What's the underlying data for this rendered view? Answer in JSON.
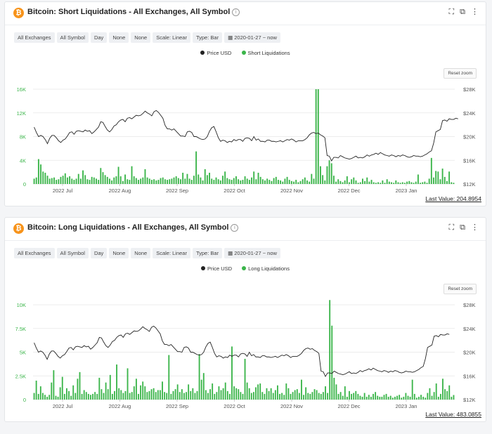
{
  "panels": [
    {
      "title": "Bitcoin: Short Liquidations - All Exchanges, All Symbol",
      "chips": [
        "All Exchanges",
        "All Symbol",
        "Day",
        "None",
        "None",
        "Scale: Linear",
        "Type: Bar",
        "2020-01-27 ~ now"
      ],
      "legend": [
        "Price USD",
        "Short Liquidations"
      ],
      "reset_zoom": "Reset zoom",
      "last_value": "Last Value: 204.8954"
    },
    {
      "title": "Bitcoin: Long Liquidations - All Exchanges, All Symbol",
      "chips": [
        "All Exchanges",
        "All Symbol",
        "Day",
        "None",
        "None",
        "Scale: Linear",
        "Type: Bar",
        "2020-01-27 ~ now"
      ],
      "legend": [
        "Price USD",
        "Long Liquidations"
      ],
      "reset_zoom": "Reset zoom",
      "last_value": "Last Value: 483.0855"
    }
  ],
  "colors": {
    "bar": "#3bb54a",
    "price": "#222222",
    "left_axis": "#3bb54a",
    "grid": "#e6e6e6"
  },
  "chart_data": [
    {
      "type": "bar",
      "title": "Bitcoin: Short Liquidations - All Exchanges, All Symbol",
      "x_labels": [
        "2022 Jul",
        "2022 Aug",
        "2022 Sep",
        "2022 Oct",
        "2022 Nov",
        "2022 Dec",
        "2023 Jan"
      ],
      "y_left_ticks": [
        "0",
        "4K",
        "8K",
        "12K",
        "16K"
      ],
      "y_left_max": 16000,
      "y_right_ticks": [
        "$12K",
        "$16K",
        "$20K",
        "$24K",
        "$28K"
      ],
      "y_right_range": [
        12000,
        28000
      ],
      "series": [
        {
          "name": "Short Liquidations",
          "values": [
            900,
            1100,
            4200,
            3300,
            2100,
            1900,
            1400,
            900,
            1000,
            1100,
            700,
            800,
            1200,
            1400,
            1800,
            1100,
            1300,
            900,
            700,
            900,
            1700,
            900,
            2300,
            1500,
            800,
            700,
            1200,
            1100,
            900,
            700,
            2700,
            2000,
            1500,
            1200,
            900,
            600,
            1100,
            1300,
            2900,
            1300,
            500,
            1600,
            800,
            700,
            3000,
            1300,
            1000,
            700,
            900,
            1100,
            2500,
            1100,
            900,
            700,
            800,
            600,
            700,
            1000,
            1100,
            800,
            700,
            800,
            900,
            1100,
            1300,
            1000,
            800,
            1900,
            900,
            1700,
            900,
            700,
            1400,
            5500,
            1600,
            1100,
            600,
            2500,
            1500,
            1900,
            900,
            700,
            1100,
            800,
            600,
            1400,
            2100,
            1000,
            800,
            700,
            1000,
            1300,
            800,
            600,
            700,
            1300,
            900,
            700,
            1100,
            2100,
            800,
            1900,
            1200,
            800,
            600,
            900,
            700,
            500,
            1000,
            1200,
            700,
            600,
            400,
            900,
            1200,
            700,
            500,
            400,
            700,
            300,
            500,
            800,
            1100,
            600,
            400,
            1700,
            900,
            16000,
            16000,
            3000,
            1500,
            600,
            3000,
            4000,
            3500,
            1400,
            400,
            800,
            500,
            300,
            600,
            1300,
            300,
            800,
            1100,
            600,
            200,
            300,
            900,
            500,
            1100,
            400,
            700,
            300,
            200,
            300,
            200,
            600,
            200,
            800,
            400,
            300,
            200,
            600,
            300,
            200,
            300,
            200,
            400,
            500,
            300,
            200,
            400,
            1600,
            200,
            300,
            400,
            200,
            900,
            4400,
            1100,
            2200,
            2100,
            800,
            2600,
            1200,
            500,
            2100,
            300,
            205
          ]
        },
        {
          "name": "Price USD",
          "values": [
            21600,
            20700,
            20000,
            20200,
            20000,
            19500,
            18800,
            19700,
            20200,
            20200,
            19800,
            19300,
            19000,
            19400,
            19600,
            20100,
            20700,
            20800,
            20400,
            20900,
            21000,
            20900,
            20800,
            21100,
            20900,
            21000,
            20500,
            20800,
            21200,
            21600,
            22500,
            22400,
            21700,
            21100,
            20800,
            21200,
            21800,
            22000,
            22500,
            22800,
            22900,
            22500,
            23100,
            23200,
            23000,
            23300,
            23600,
            23500,
            23600,
            23900,
            24300,
            24000,
            23800,
            23500,
            24200,
            24400,
            24100,
            23600,
            23100,
            21900,
            21300,
            21300,
            21100,
            21300,
            20900,
            20500,
            20100,
            20100,
            20000,
            20800,
            20900,
            20700,
            20000,
            20000,
            19800,
            19600,
            19500,
            19600,
            20000,
            20900,
            21500,
            21700,
            20800,
            19800,
            19200,
            19400,
            19300,
            19000,
            19200,
            19100,
            19500,
            19300,
            19500,
            19500,
            19200,
            19700,
            19800,
            19700,
            19300,
            20000,
            19400,
            19600,
            19200,
            19200,
            19100,
            19400,
            19400,
            19200,
            19200,
            19100,
            19200,
            19300,
            19100,
            19300,
            19500,
            19400,
            19600,
            19400,
            19100,
            19300,
            19300,
            19300,
            19500,
            19800,
            20300,
            20600,
            20700,
            20500,
            20600,
            20300,
            20100,
            19800,
            16800,
            16700,
            15900,
            16500,
            16500,
            16400,
            16800,
            16600,
            16400,
            16300,
            16200,
            16300,
            16500,
            16700,
            16400,
            16500,
            16400,
            16600,
            16900,
            16700,
            16900,
            17000,
            17200,
            17000,
            17300,
            17100,
            16900,
            16800,
            16700,
            16900,
            16800,
            16600,
            16800,
            16700,
            16900,
            16800,
            16600,
            16500,
            16600,
            16800,
            16700,
            16700,
            16600,
            16700,
            16900,
            17100,
            17400,
            17600,
            18900,
            20800,
            21000,
            21200,
            22700,
            22800,
            22600,
            23000,
            22900,
            22900,
            23100,
            23000
          ]
        }
      ]
    },
    {
      "type": "bar",
      "title": "Bitcoin: Long Liquidations - All Exchanges, All Symbol",
      "x_labels": [
        "2022 Jul",
        "2022 Aug",
        "2022 Sep",
        "2022 Oct",
        "2022 Nov",
        "2022 Dec",
        "2023 Jan"
      ],
      "y_left_ticks": [
        "0",
        "2.5K",
        "5K",
        "7.5K",
        "10K"
      ],
      "y_left_max": 10000,
      "y_right_ticks": [
        "$12K",
        "$16K",
        "$20K",
        "$24K",
        "$28K"
      ],
      "y_right_range": [
        12000,
        28000
      ],
      "series": [
        {
          "name": "Long Liquidations",
          "values": [
            700,
            2000,
            600,
            1400,
            700,
            500,
            300,
            500,
            1800,
            3100,
            400,
            300,
            1300,
            2400,
            600,
            1200,
            900,
            400,
            1500,
            700,
            2200,
            2900,
            600,
            1000,
            800,
            600,
            500,
            600,
            800,
            600,
            2300,
            1100,
            700,
            1800,
            1100,
            2600,
            600,
            900,
            3700,
            1200,
            1000,
            700,
            900,
            3300,
            700,
            800,
            1400,
            2200,
            600,
            1500,
            1900,
            1400,
            800,
            900,
            1100,
            1200,
            800,
            1000,
            1000,
            1900,
            800,
            700,
            4700,
            600,
            900,
            1100,
            1600,
            800,
            1100,
            700,
            800,
            1600,
            900,
            1200,
            700,
            900,
            4800,
            2100,
            2800,
            1000,
            700,
            1100,
            1700,
            600,
            800,
            1400,
            1000,
            1200,
            1800,
            900,
            600,
            5600,
            1400,
            1200,
            1100,
            800,
            600,
            4300,
            1800,
            1200,
            700,
            800,
            1300,
            1600,
            1700,
            800,
            600,
            1200,
            900,
            1200,
            700,
            1000,
            1500,
            600,
            700,
            500,
            1700,
            1200,
            600,
            800,
            1000,
            1100,
            700,
            2100,
            500,
            1300,
            700,
            600,
            800,
            1100,
            1000,
            700,
            600,
            800,
            1400,
            700,
            10500,
            7800,
            2300,
            1600,
            600,
            800,
            400,
            1400,
            300,
            900,
            600,
            700,
            900,
            600,
            400,
            300,
            700,
            300,
            500,
            300,
            600,
            800,
            400,
            300,
            300,
            500,
            600,
            300,
            400,
            200,
            300,
            400,
            500,
            200,
            300,
            700,
            400,
            300,
            2100,
            600,
            200,
            300,
            500,
            300,
            200,
            700,
            1200,
            400,
            800,
            1700,
            300,
            600,
            2200,
            1100,
            900,
            1500,
            300,
            483
          ]
        },
        {
          "name": "Price USD",
          "values": [
            21600,
            20700,
            20000,
            20200,
            20000,
            19500,
            18800,
            19700,
            20200,
            20200,
            19800,
            19300,
            19000,
            19400,
            19600,
            20100,
            20700,
            20800,
            20400,
            20900,
            21000,
            20900,
            20800,
            21100,
            20900,
            21000,
            20500,
            20800,
            21200,
            21600,
            22500,
            22400,
            21700,
            21100,
            20800,
            21200,
            21800,
            22000,
            22500,
            22800,
            22900,
            22500,
            23100,
            23200,
            23000,
            23300,
            23600,
            23500,
            23600,
            23900,
            24300,
            24000,
            23800,
            23500,
            24200,
            24400,
            24100,
            23600,
            23100,
            21900,
            21300,
            21300,
            21100,
            21300,
            20900,
            20500,
            20100,
            20100,
            20000,
            20800,
            20900,
            20700,
            20000,
            20000,
            19800,
            19600,
            19500,
            19600,
            20000,
            20900,
            21500,
            21700,
            20800,
            19800,
            19200,
            19400,
            19300,
            19000,
            19200,
            19100,
            19500,
            19300,
            19500,
            19500,
            19200,
            19700,
            19800,
            19700,
            19300,
            20000,
            19400,
            19600,
            19200,
            19200,
            19100,
            19400,
            19400,
            19200,
            19200,
            19100,
            19200,
            19300,
            19100,
            19300,
            19500,
            19400,
            19600,
            19400,
            19100,
            19300,
            19300,
            19300,
            19500,
            19800,
            20300,
            20600,
            20700,
            20500,
            20600,
            20300,
            20100,
            19800,
            16800,
            16700,
            15900,
            16500,
            16500,
            16400,
            16800,
            16600,
            16400,
            16300,
            16200,
            16300,
            16500,
            16700,
            16400,
            16500,
            16400,
            16600,
            16900,
            16700,
            16900,
            17000,
            17200,
            17000,
            17300,
            17100,
            16900,
            16800,
            16700,
            16900,
            16800,
            16600,
            16800,
            16700,
            16900,
            16800,
            16600,
            16500,
            16600,
            16800,
            16700,
            16700,
            16600,
            16700,
            16900,
            17100,
            17400,
            17600,
            18900,
            20800,
            21000,
            21200,
            22700,
            22800,
            22600,
            23000,
            22900,
            22900,
            23100,
            23000
          ]
        }
      ]
    }
  ]
}
